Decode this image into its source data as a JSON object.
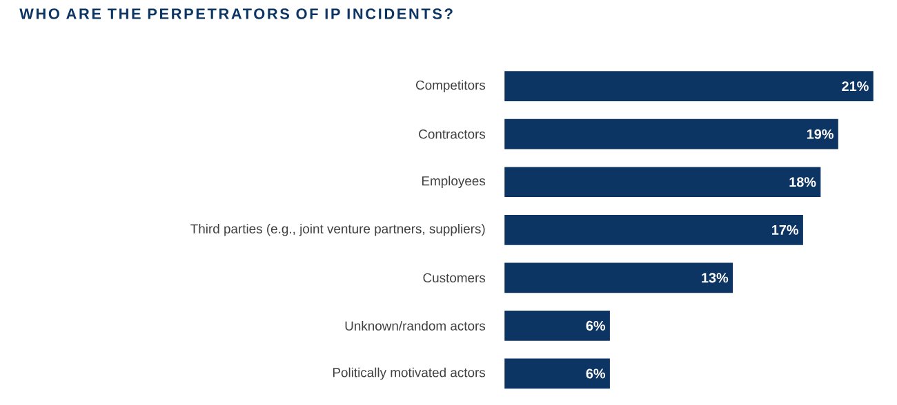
{
  "chart_data": {
    "type": "bar",
    "orientation": "horizontal",
    "title": "WHO ARE THE PERPETRATORS OF IP INCIDENTS?",
    "categories": [
      "Competitors",
      "Contractors",
      "Employees",
      "Third parties (e.g., joint venture partners, suppliers)",
      "Customers",
      "Unknown/random actors",
      "Politically motivated actors"
    ],
    "values": [
      21,
      19,
      18,
      17,
      13,
      6,
      6
    ],
    "value_labels": [
      "21%",
      "19%",
      "18%",
      "17%",
      "13%",
      "6%",
      "6%"
    ],
    "color": "#0d3563"
  }
}
